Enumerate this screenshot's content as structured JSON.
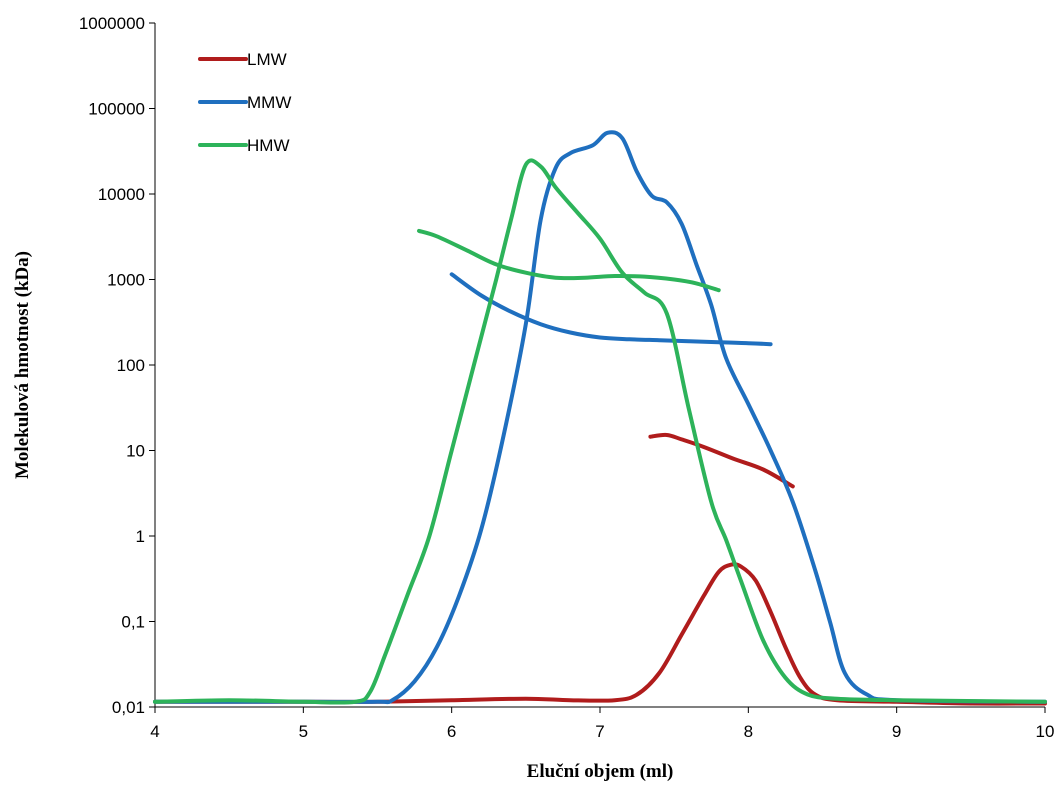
{
  "chart_data": {
    "type": "line",
    "title": "",
    "xlabel": "Eluční objem (ml)",
    "ylabel": "Molekulová hmotnost (kDa)",
    "x_scale": "linear",
    "y_scale": "log",
    "xlim": [
      4,
      10
    ],
    "ylim": [
      0.01,
      1000000
    ],
    "x_ticks": [
      "4",
      "5",
      "6",
      "7",
      "8",
      "9",
      "10"
    ],
    "y_ticks": [
      "0,01",
      "0,1",
      "1",
      "10",
      "100",
      "1000",
      "10000",
      "100000",
      "1000000"
    ],
    "grid": false,
    "legend_position": "top-left",
    "legend": [
      "LMW",
      "MMW",
      "HMW"
    ],
    "colors": {
      "LMW": "#b01c1c",
      "MMW": "#1f6fbf",
      "HMW": "#2db35a"
    },
    "series": [
      {
        "name": "LMW",
        "curves": [
          [
            [
              4.0,
              0.0115
            ],
            [
              5.0,
              0.0115
            ],
            [
              5.5,
              0.0115
            ],
            [
              6.0,
              0.012
            ],
            [
              6.5,
              0.0125
            ],
            [
              6.8,
              0.012
            ],
            [
              7.1,
              0.012
            ],
            [
              7.25,
              0.014
            ],
            [
              7.4,
              0.025
            ],
            [
              7.55,
              0.07
            ],
            [
              7.7,
              0.2
            ],
            [
              7.8,
              0.38
            ],
            [
              7.88,
              0.46
            ],
            [
              7.95,
              0.44
            ],
            [
              8.05,
              0.3
            ],
            [
              8.15,
              0.13
            ],
            [
              8.25,
              0.05
            ],
            [
              8.35,
              0.022
            ],
            [
              8.45,
              0.014
            ],
            [
              8.6,
              0.012
            ],
            [
              9.0,
              0.0115
            ],
            [
              9.5,
              0.011
            ],
            [
              10.0,
              0.011
            ]
          ],
          [
            [
              7.34,
              14.5
            ],
            [
              7.45,
              15.2
            ],
            [
              7.55,
              13.5
            ],
            [
              7.7,
              11
            ],
            [
              7.9,
              8
            ],
            [
              8.1,
              6
            ],
            [
              8.3,
              3.8
            ]
          ]
        ]
      },
      {
        "name": "MMW",
        "curves": [
          [
            [
              4.0,
              0.0115
            ],
            [
              5.0,
              0.0115
            ],
            [
              5.5,
              0.0115
            ],
            [
              5.6,
              0.012
            ],
            [
              5.75,
              0.02
            ],
            [
              5.9,
              0.05
            ],
            [
              6.05,
              0.2
            ],
            [
              6.2,
              1.2
            ],
            [
              6.35,
              15
            ],
            [
              6.5,
              300
            ],
            [
              6.6,
              5000
            ],
            [
              6.7,
              20000
            ],
            [
              6.8,
              30000
            ],
            [
              6.95,
              37000
            ],
            [
              7.05,
              52000
            ],
            [
              7.15,
              45000
            ],
            [
              7.25,
              18000
            ],
            [
              7.35,
              9500
            ],
            [
              7.45,
              8000
            ],
            [
              7.55,
              4500
            ],
            [
              7.65,
              1500
            ],
            [
              7.75,
              500
            ],
            [
              7.85,
              120
            ],
            [
              8.0,
              35
            ],
            [
              8.15,
              10
            ],
            [
              8.3,
              2.5
            ],
            [
              8.45,
              0.4
            ],
            [
              8.55,
              0.1
            ],
            [
              8.65,
              0.025
            ],
            [
              8.8,
              0.014
            ],
            [
              9.0,
              0.012
            ],
            [
              10.0,
              0.0115
            ]
          ],
          [
            [
              6.0,
              1150
            ],
            [
              6.2,
              650
            ],
            [
              6.4,
              420
            ],
            [
              6.6,
              300
            ],
            [
              6.8,
              240
            ],
            [
              7.0,
              210
            ],
            [
              7.2,
              200
            ],
            [
              7.4,
              195
            ],
            [
              7.6,
              190
            ],
            [
              7.8,
              185
            ],
            [
              8.0,
              180
            ],
            [
              8.15,
              175
            ]
          ]
        ]
      },
      {
        "name": "HMW",
        "curves": [
          [
            [
              4.0,
              0.0115
            ],
            [
              4.5,
              0.012
            ],
            [
              5.0,
              0.0115
            ],
            [
              5.35,
              0.0115
            ],
            [
              5.45,
              0.015
            ],
            [
              5.55,
              0.04
            ],
            [
              5.7,
              0.2
            ],
            [
              5.85,
              1
            ],
            [
              6.0,
              10
            ],
            [
              6.15,
              100
            ],
            [
              6.3,
              1000
            ],
            [
              6.4,
              5000
            ],
            [
              6.5,
              22000
            ],
            [
              6.6,
              21000
            ],
            [
              6.7,
              12000
            ],
            [
              6.85,
              6000
            ],
            [
              7.0,
              3000
            ],
            [
              7.15,
              1200
            ],
            [
              7.3,
              700
            ],
            [
              7.45,
              400
            ],
            [
              7.6,
              30
            ],
            [
              7.75,
              2.5
            ],
            [
              7.85,
              0.9
            ],
            [
              7.95,
              0.3
            ],
            [
              8.1,
              0.06
            ],
            [
              8.25,
              0.022
            ],
            [
              8.4,
              0.014
            ],
            [
              8.6,
              0.0125
            ],
            [
              9.0,
              0.012
            ],
            [
              10.0,
              0.0115
            ]
          ],
          [
            [
              5.78,
              3700
            ],
            [
              5.9,
              3200
            ],
            [
              6.1,
              2200
            ],
            [
              6.3,
              1500
            ],
            [
              6.5,
              1200
            ],
            [
              6.7,
              1050
            ],
            [
              6.9,
              1050
            ],
            [
              7.1,
              1100
            ],
            [
              7.3,
              1080
            ],
            [
              7.5,
              1000
            ],
            [
              7.65,
              900
            ],
            [
              7.8,
              750
            ]
          ]
        ]
      }
    ]
  }
}
